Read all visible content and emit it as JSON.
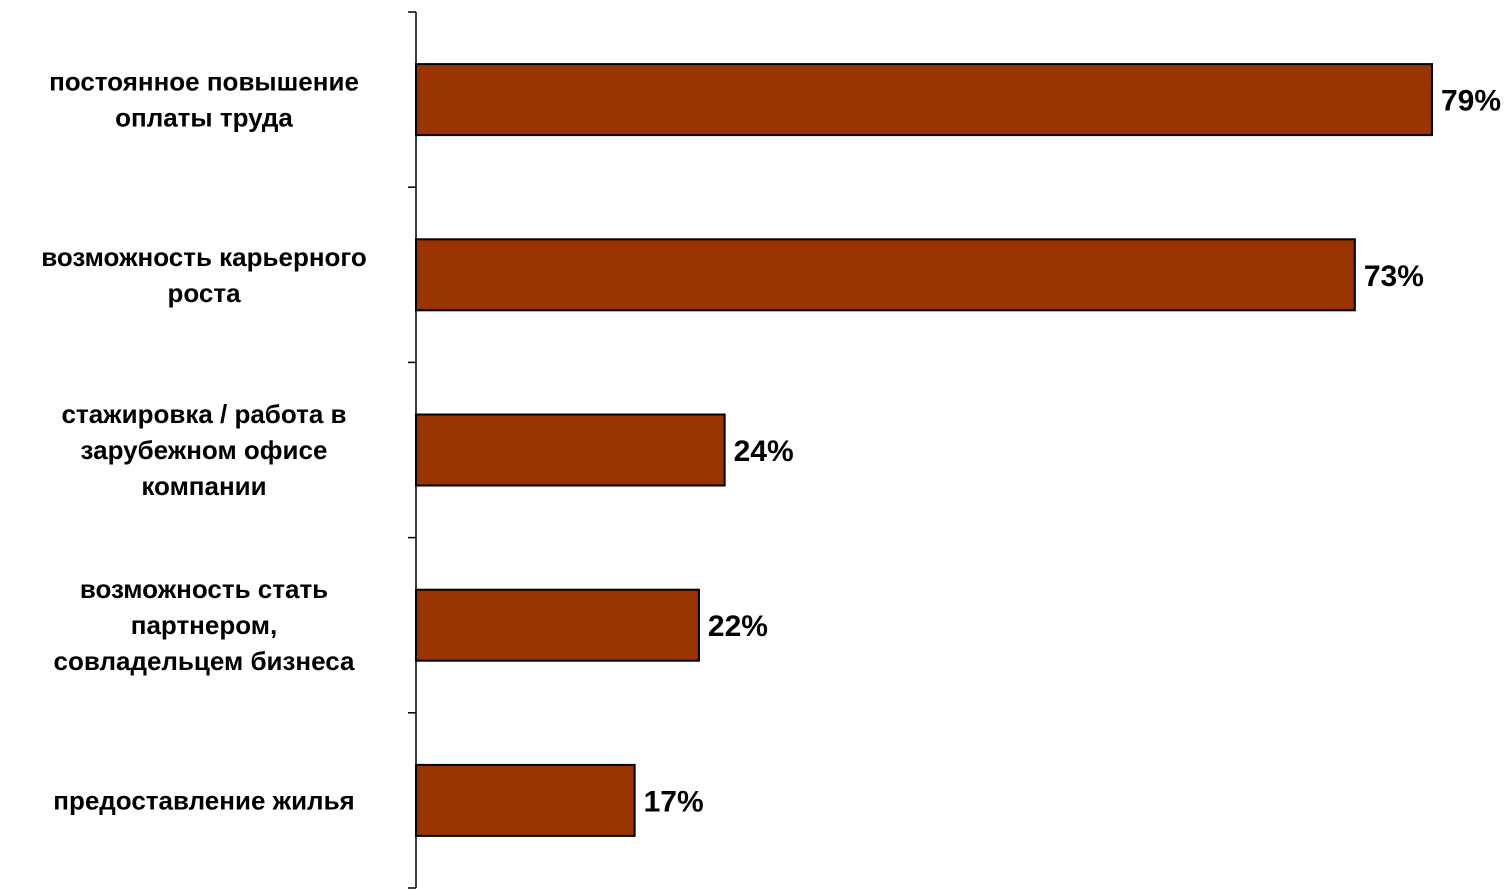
{
  "chart_data": {
    "type": "bar",
    "orientation": "horizontal",
    "categories": [
      [
        "постоянное повышение",
        "оплаты труда"
      ],
      [
        "возможность карьерного",
        "роста"
      ],
      [
        "стажировка / работа в",
        "зарубежном офисе",
        "компании"
      ],
      [
        "возможность стать",
        "партнером,",
        "совладельцем бизнеса"
      ],
      [
        "предоставление жилья"
      ]
    ],
    "values": [
      79,
      73,
      24,
      22,
      17
    ],
    "value_labels": [
      "79%",
      "73%",
      "24%",
      "22%",
      "17%"
    ],
    "unit": "%",
    "xlim": [
      0,
      100
    ],
    "title": "",
    "xlabel": "",
    "ylabel": "",
    "grid": false,
    "legend": false,
    "bar_color": "#993300",
    "bar_edge_color": "#000000"
  }
}
